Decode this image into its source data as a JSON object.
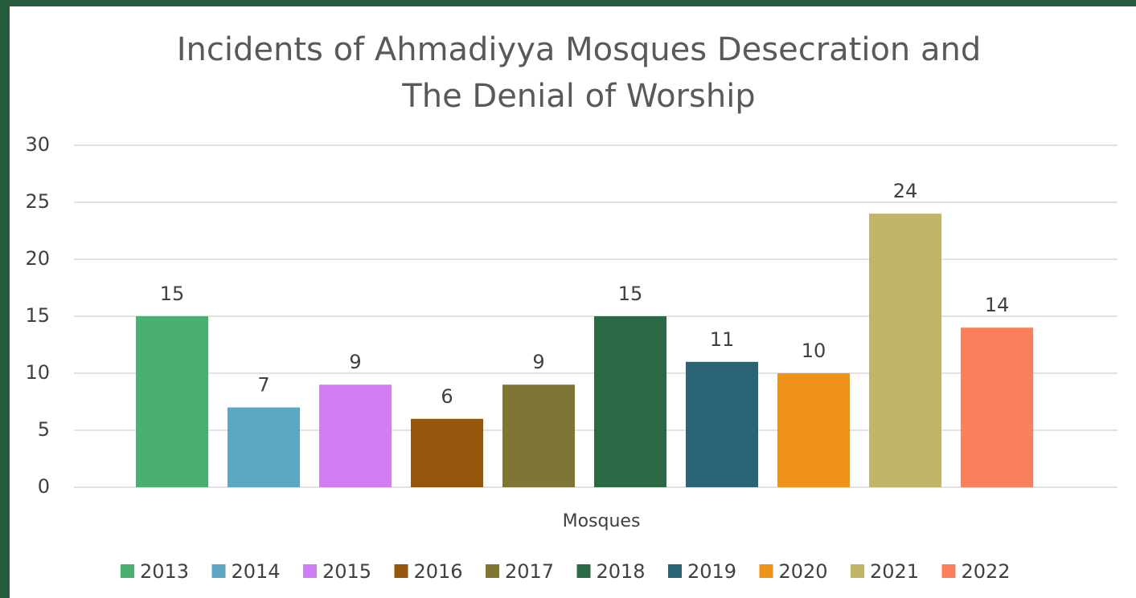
{
  "chart_data": {
    "type": "bar",
    "title": [
      "Incidents of Ahmadiyya Mosques Desecration and",
      "The Denial of Worship"
    ],
    "categories": [
      "Mosques"
    ],
    "series": [
      {
        "name": "2013",
        "color": "#4caf72",
        "values": [
          15
        ]
      },
      {
        "name": "2014",
        "color": "#5ba7c4",
        "values": [
          7
        ]
      },
      {
        "name": "2015",
        "color": "#d17ef5",
        "values": [
          9
        ]
      },
      {
        "name": "2016",
        "color": "#94560a",
        "values": [
          6
        ]
      },
      {
        "name": "2017",
        "color": "#7f7535",
        "values": [
          9
        ]
      },
      {
        "name": "2018",
        "color": "#2b6a45",
        "values": [
          15
        ]
      },
      {
        "name": "2019",
        "color": "#2c6477",
        "values": [
          11
        ]
      },
      {
        "name": "2020",
        "color": "#ef9219",
        "values": [
          10
        ]
      },
      {
        "name": "2021",
        "color": "#c1b56a",
        "values": [
          24
        ]
      },
      {
        "name": "2022",
        "color": "#fb7f5d",
        "values": [
          14
        ]
      }
    ],
    "ylim": [
      0,
      30
    ],
    "yticks": [
      0,
      5,
      10,
      15,
      20,
      25,
      30
    ],
    "grid": true,
    "legend": "bottom"
  }
}
